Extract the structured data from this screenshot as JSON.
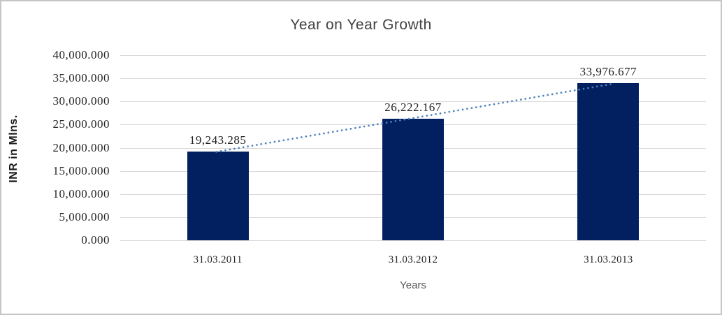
{
  "chart_data": {
    "type": "bar",
    "title": "Year on Year Growth",
    "xlabel": "Years",
    "ylabel": "INR in Mlns.",
    "categories": [
      "31.03.2011",
      "31.03.2012",
      "31.03.2013"
    ],
    "values": [
      19243.285,
      26222.167,
      33976.677
    ],
    "data_labels": [
      "19,243.285",
      "26,222.167",
      "33,976.677"
    ],
    "ylim": [
      0,
      40000
    ],
    "y_tick_step": 5000,
    "y_tick_labels": [
      "0.000",
      "5,000.000",
      "10,000.000",
      "15,000.000",
      "20,000.000",
      "25,000.000",
      "30,000.000",
      "35,000.000",
      "40,000.000"
    ],
    "grid": true,
    "legend_position": "none",
    "colors": {
      "bar": "#022060",
      "trendline": "#4f81bd",
      "gridline": "#d9d9d9",
      "title_text": "#404040",
      "tick_text": "#262626"
    },
    "trendline": {
      "type": "linear",
      "style": "dotted"
    }
  }
}
